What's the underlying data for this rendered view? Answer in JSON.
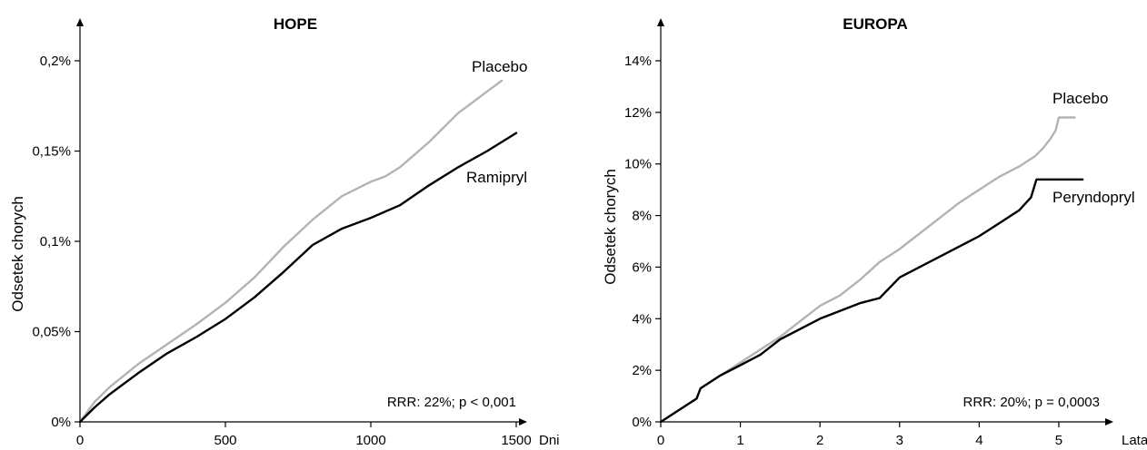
{
  "colors": {
    "placebo": "#b3b3b3",
    "treatment": "#000000"
  },
  "chart_data": [
    {
      "type": "line",
      "title": "HOPE",
      "ylabel": "Odsetek chorych",
      "xunit": "Dni",
      "xlim": [
        0,
        1500
      ],
      "ylim": [
        0,
        0.2
      ],
      "xticks": [
        0,
        500,
        1000,
        1500
      ],
      "xtick_labels": [
        "0",
        "500",
        "1000",
        "1500"
      ],
      "yticks": [
        0,
        0.05,
        0.1,
        0.15,
        0.2
      ],
      "ytick_labels": [
        "0%",
        "0,05%",
        "0,1%",
        "0,15%",
        "0,2%"
      ],
      "annotation": "RRR: 22%; p < 0,001",
      "series": [
        {
          "name": "Placebo",
          "color": "#b3b3b3",
          "x": [
            0,
            50,
            100,
            200,
            300,
            400,
            500,
            600,
            700,
            800,
            900,
            1000,
            1050,
            1100,
            1200,
            1300,
            1400,
            1450
          ],
          "y": [
            0,
            0.011,
            0.019,
            0.032,
            0.043,
            0.054,
            0.066,
            0.08,
            0.097,
            0.112,
            0.125,
            0.133,
            0.136,
            0.141,
            0.155,
            0.171,
            0.183,
            0.189
          ]
        },
        {
          "name": "Ramipryl",
          "color": "#000000",
          "x": [
            0,
            50,
            100,
            200,
            300,
            400,
            500,
            600,
            700,
            800,
            900,
            1000,
            1100,
            1200,
            1300,
            1400,
            1500
          ],
          "y": [
            0,
            0.008,
            0.015,
            0.027,
            0.038,
            0.047,
            0.057,
            0.069,
            0.083,
            0.098,
            0.107,
            0.113,
            0.12,
            0.131,
            0.141,
            0.15,
            0.16
          ]
        }
      ]
    },
    {
      "type": "line",
      "title": "EUROPA",
      "ylabel": "Odsetek chorych",
      "xunit": "Lata",
      "xlim": [
        0,
        5.4
      ],
      "ylim": [
        0,
        14
      ],
      "xticks": [
        0,
        1,
        2,
        3,
        4,
        5
      ],
      "xtick_labels": [
        "0",
        "1",
        "2",
        "3",
        "4",
        "5"
      ],
      "yticks": [
        0,
        2,
        4,
        6,
        8,
        10,
        12,
        14
      ],
      "ytick_labels": [
        "0%",
        "2%",
        "4%",
        "6%",
        "8%",
        "10%",
        "12%",
        "14%"
      ],
      "annotation": "RRR: 20%; p = 0,0003",
      "series": [
        {
          "name": "Placebo",
          "color": "#b3b3b3",
          "x": [
            0,
            0.25,
            0.45,
            0.5,
            0.75,
            1.0,
            1.25,
            1.5,
            1.75,
            2.0,
            2.25,
            2.5,
            2.75,
            3.0,
            3.25,
            3.5,
            3.75,
            4.0,
            4.25,
            4.5,
            4.7,
            4.8,
            4.9,
            4.96,
            5.0,
            5.2
          ],
          "y": [
            0,
            0.5,
            0.9,
            1.3,
            1.8,
            2.3,
            2.8,
            3.3,
            3.9,
            4.5,
            4.9,
            5.5,
            6.2,
            6.7,
            7.3,
            7.9,
            8.5,
            9.0,
            9.5,
            9.9,
            10.3,
            10.6,
            11.0,
            11.3,
            11.8,
            11.8
          ]
        },
        {
          "name": "Peryndopryl",
          "color": "#000000",
          "x": [
            0,
            0.25,
            0.45,
            0.5,
            0.75,
            1.0,
            1.25,
            1.5,
            1.75,
            2.0,
            2.25,
            2.5,
            2.75,
            3.0,
            3.25,
            3.5,
            3.75,
            4.0,
            4.25,
            4.5,
            4.65,
            4.72,
            5.3
          ],
          "y": [
            0,
            0.5,
            0.9,
            1.3,
            1.8,
            2.2,
            2.6,
            3.2,
            3.6,
            4.0,
            4.3,
            4.6,
            4.8,
            5.6,
            6.0,
            6.4,
            6.8,
            7.2,
            7.7,
            8.2,
            8.7,
            9.4,
            9.4
          ]
        }
      ]
    }
  ]
}
